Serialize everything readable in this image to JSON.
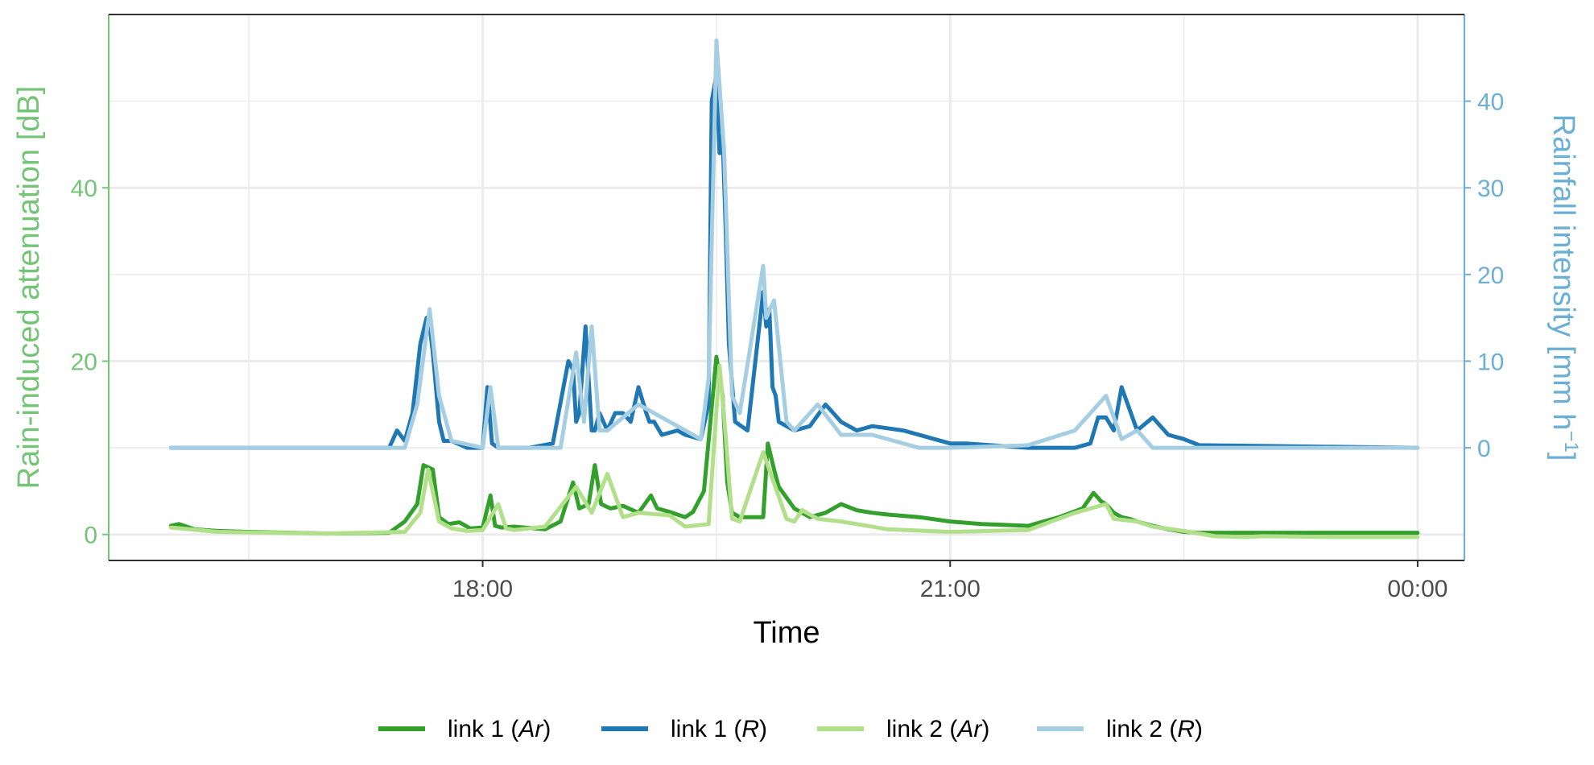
{
  "chart_data": {
    "type": "line",
    "xlabel": "Time",
    "ylabel_left": "Rain-induced attenuation [dB]",
    "ylabel_right": "Rainfall intensity [mm h",
    "ylabel_right_sup": "−1",
    "ylabel_right_close": "]",
    "x_ticks": [
      "18:00",
      "21:00",
      "00:00"
    ],
    "x_tick_hours": [
      18,
      21,
      24
    ],
    "x_minor_hours": [
      16.5,
      19.5,
      22.5
    ],
    "xlim_hours": [
      15.6,
      24.3
    ],
    "y_left_ticks": [
      0,
      20,
      40
    ],
    "y_left_minor": [
      10,
      30,
      50
    ],
    "ylim_left": [
      -3,
      60
    ],
    "y_right_ticks": [
      0,
      10,
      20,
      30,
      40
    ],
    "y_right_offset_db": 10,
    "db_per_mm_h": 1,
    "grid": true,
    "legend_position": "bottom",
    "colors": {
      "left_axis": "#74c476",
      "right_axis": "#6baed6",
      "link1_Ar": "#33a02c",
      "link1_R": "#1f78b4",
      "link2_Ar": "#b2df8a",
      "link2_R": "#a6cee3",
      "grid": "#ebebeb",
      "axis_line": "#333333",
      "x_tick_text": "#4d4d4d"
    },
    "legend": [
      {
        "key": "link2_Ar",
        "name": "link 2",
        "var": "Ar"
      },
      {
        "key": "link2_R",
        "name": "link 2",
        "var": "R"
      },
      {
        "key": "link1_Ar",
        "name": "link 1",
        "var": "Ar"
      },
      {
        "key": "link1_R",
        "name": "link 1",
        "var": "R"
      }
    ],
    "legend_order": [
      "link1_Ar",
      "link1_R",
      "link2_Ar",
      "link2_R"
    ],
    "series": [
      {
        "key": "link2_Ar",
        "axis": "left",
        "x": [
          16.0,
          16.3,
          17.0,
          17.5,
          17.6,
          17.65,
          17.72,
          17.8,
          17.9,
          18.0,
          18.1,
          18.15,
          18.2,
          18.4,
          18.6,
          18.7,
          18.8,
          18.9,
          19.0,
          19.2,
          19.3,
          19.45,
          19.52,
          19.55,
          19.6,
          19.65,
          19.8,
          19.95,
          20.0,
          20.05,
          20.15,
          20.3,
          20.4,
          20.6,
          21.0,
          21.5,
          21.8,
          22.0,
          22.05,
          22.2,
          22.3,
          22.5,
          22.7,
          22.9,
          23.0,
          23.5,
          24.0
        ],
        "y": [
          0.8,
          0.3,
          0.1,
          0.3,
          2.5,
          7.5,
          1.5,
          0.7,
          0.4,
          0.5,
          3.5,
          0.7,
          0.5,
          0.9,
          5.5,
          2.5,
          7.0,
          2.0,
          2.5,
          2.2,
          0.9,
          1.2,
          19.5,
          13.5,
          1.8,
          1.5,
          9.5,
          1.8,
          1.5,
          2.8,
          1.8,
          1.5,
          1.2,
          0.6,
          0.3,
          0.5,
          2.5,
          3.5,
          1.8,
          1.5,
          0.9,
          0.4,
          -0.2,
          -0.3,
          -0.2,
          -0.3,
          -0.3
        ]
      },
      {
        "key": "link2_R",
        "axis": "right",
        "x": [
          16.0,
          17.5,
          17.58,
          17.66,
          17.72,
          17.8,
          18.0,
          18.05,
          18.1,
          18.2,
          18.5,
          18.6,
          18.65,
          18.7,
          18.75,
          18.8,
          19.0,
          19.2,
          19.3,
          19.4,
          19.45,
          19.5,
          19.55,
          19.6,
          19.65,
          19.8,
          19.82,
          19.87,
          19.95,
          20.0,
          20.15,
          20.3,
          20.5,
          20.8,
          21.0,
          21.5,
          21.8,
          22.0,
          22.1,
          22.2,
          22.3,
          22.4,
          22.5,
          22.7,
          23.0,
          24.0
        ],
        "y": [
          0,
          0,
          5,
          16,
          6,
          0.8,
          0,
          7,
          0,
          0,
          0,
          11,
          3,
          14,
          2,
          2,
          5,
          3,
          2,
          1,
          8,
          47,
          34,
          6,
          4,
          21,
          15,
          17,
          3,
          2,
          5,
          1.5,
          1.5,
          0,
          0,
          0.3,
          2,
          6,
          1,
          2,
          0,
          0,
          0,
          0,
          0,
          0
        ]
      },
      {
        "key": "link1_Ar",
        "axis": "left",
        "x": [
          16.0,
          16.05,
          16.15,
          16.3,
          16.5,
          17.0,
          17.4,
          17.5,
          17.58,
          17.62,
          17.68,
          17.72,
          17.78,
          17.85,
          17.92,
          18.0,
          18.05,
          18.08,
          18.12,
          18.2,
          18.4,
          18.5,
          18.58,
          18.62,
          18.68,
          18.72,
          18.76,
          18.82,
          18.9,
          19.0,
          19.08,
          19.12,
          19.2,
          19.3,
          19.35,
          19.42,
          19.5,
          19.54,
          19.57,
          19.6,
          19.65,
          19.8,
          19.83,
          19.87,
          19.9,
          20.0,
          20.1,
          20.2,
          20.3,
          20.4,
          20.5,
          20.6,
          20.8,
          21.0,
          21.2,
          21.5,
          21.7,
          21.85,
          21.92,
          21.97,
          22.0,
          22.05,
          22.1,
          22.15,
          22.2,
          22.3,
          22.4,
          22.5,
          22.6,
          23.0,
          23.5,
          24.0
        ],
        "y": [
          1.0,
          1.2,
          0.6,
          0.4,
          0.3,
          0.1,
          0.2,
          1.5,
          3.5,
          8.0,
          7.5,
          2.0,
          1.2,
          1.4,
          0.7,
          0.8,
          4.5,
          1.0,
          0.8,
          0.9,
          0.6,
          1.5,
          6.0,
          3.0,
          3.5,
          8.0,
          3.5,
          3.0,
          3.3,
          2.5,
          4.5,
          3.0,
          2.6,
          2.0,
          2.6,
          5.0,
          20.5,
          16.0,
          6.0,
          2.5,
          2.0,
          2.0,
          10.5,
          7.5,
          5.5,
          3.0,
          2.0,
          2.5,
          3.5,
          2.8,
          2.5,
          2.3,
          2.0,
          1.5,
          1.2,
          1.0,
          2.0,
          3.0,
          4.8,
          3.8,
          3.5,
          2.5,
          2.0,
          1.8,
          1.5,
          1.0,
          0.6,
          0.3,
          0.2,
          0.2,
          0.2,
          0.2
        ]
      },
      {
        "key": "link1_R",
        "axis": "right",
        "x": [
          16.0,
          17.4,
          17.45,
          17.5,
          17.55,
          17.6,
          17.64,
          17.66,
          17.68,
          17.72,
          17.75,
          17.8,
          17.9,
          18.0,
          18.03,
          18.06,
          18.1,
          18.15,
          18.3,
          18.45,
          18.55,
          18.58,
          18.6,
          18.62,
          18.66,
          18.7,
          18.72,
          18.75,
          18.8,
          18.85,
          18.9,
          18.95,
          19.0,
          19.05,
          19.07,
          19.1,
          19.15,
          19.25,
          19.3,
          19.4,
          19.45,
          19.47,
          19.5,
          19.52,
          19.54,
          19.56,
          19.58,
          19.62,
          19.7,
          19.8,
          19.82,
          19.84,
          19.86,
          19.88,
          19.9,
          19.95,
          20.0,
          20.1,
          20.2,
          20.25,
          20.3,
          20.4,
          20.5,
          20.7,
          21.0,
          21.1,
          21.5,
          21.8,
          21.9,
          21.95,
          22.0,
          22.05,
          22.1,
          22.2,
          22.3,
          22.4,
          22.5,
          22.6,
          24.0
        ],
        "y": [
          0,
          0,
          2,
          0.8,
          4,
          12,
          15,
          14,
          11,
          3,
          0.8,
          0.8,
          0,
          0,
          7,
          0.5,
          0,
          0,
          0,
          0.5,
          10,
          9,
          3,
          4,
          14,
          2,
          2,
          4,
          2,
          4,
          4,
          3,
          7,
          4,
          3,
          3,
          1.5,
          2,
          1.5,
          1,
          5,
          40,
          43,
          34,
          36,
          25,
          12,
          3,
          2,
          18,
          14,
          16,
          7,
          6,
          3,
          2.5,
          2,
          2.5,
          5,
          4,
          3,
          2,
          2.5,
          2,
          0.5,
          0.5,
          0,
          0,
          0.5,
          3.5,
          3.5,
          2,
          7,
          2,
          3.5,
          1.5,
          1,
          0.3,
          0
        ]
      }
    ]
  }
}
